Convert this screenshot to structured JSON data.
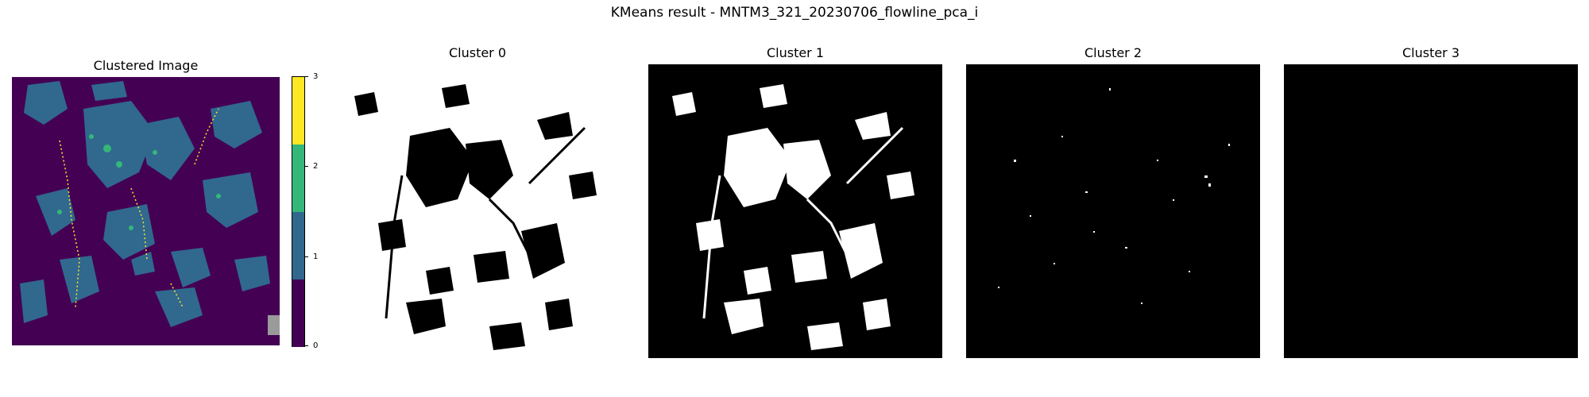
{
  "figure": {
    "suptitle": "KMeans result - MNTM3_321_20230706_flowline_pca_i"
  },
  "panels": [
    {
      "title": "Clustered Image"
    },
    {
      "title": "Cluster 0"
    },
    {
      "title": "Cluster 1"
    },
    {
      "title": "Cluster 2"
    },
    {
      "title": "Cluster 3"
    }
  ],
  "colorbar": {
    "ticks": [
      "0",
      "1",
      "2",
      "3"
    ],
    "colors": [
      "#440154",
      "#31688e",
      "#35b779",
      "#fde725"
    ]
  }
}
